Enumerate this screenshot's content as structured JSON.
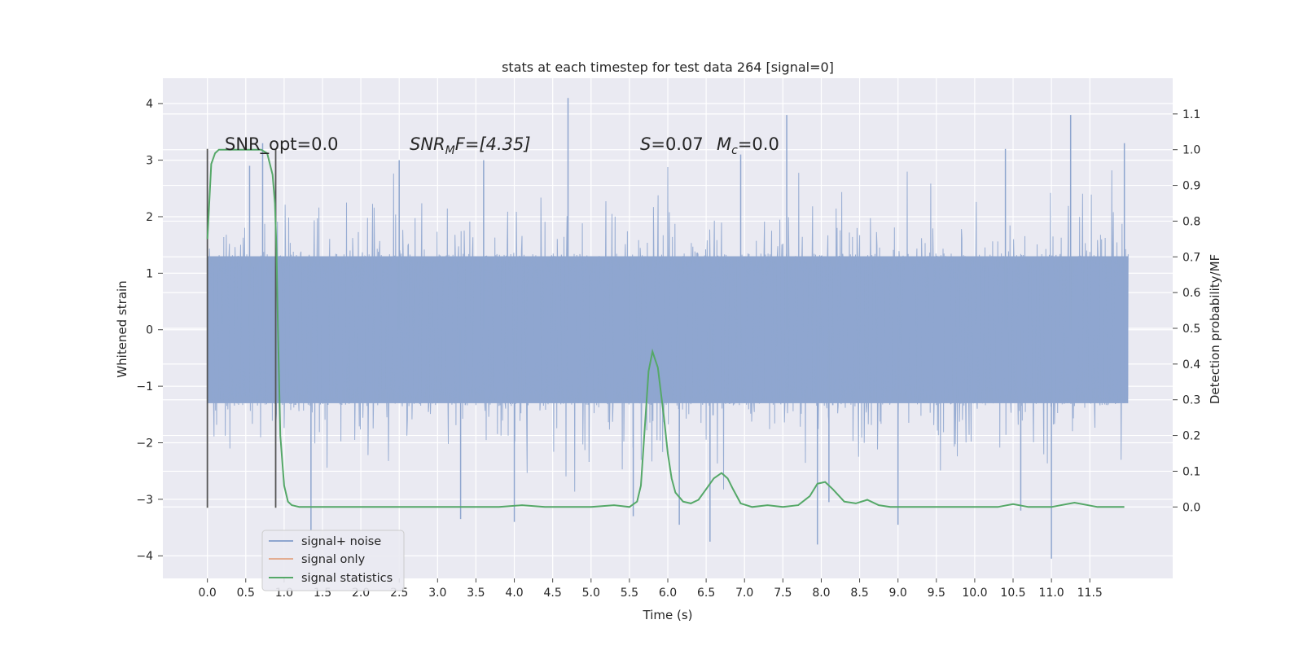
{
  "chart_data": {
    "type": "line",
    "title": "stats at each timestep for test data 264 [signal=0]",
    "xlabel": "Time (s)",
    "ylabel": "Whitened strain",
    "y2label": "Detection probability/MF",
    "xlim": [
      -0.58,
      12.58
    ],
    "ylim": [
      -4.4,
      4.45
    ],
    "y2lim": [
      -0.2,
      1.2
    ],
    "x_ticks": [
      0.0,
      0.5,
      1.0,
      1.5,
      2.0,
      2.5,
      3.0,
      3.5,
      4.0,
      4.5,
      5.0,
      5.5,
      6.0,
      6.5,
      7.0,
      7.5,
      8.0,
      8.5,
      9.0,
      9.5,
      10.0,
      10.5,
      11.0,
      11.5
    ],
    "x_tick_labels": [
      "0.0",
      "0.5",
      "1.0",
      "1.5",
      "2.0",
      "2.5",
      "3.0",
      "3.5",
      "4.0",
      "4.5",
      "5.0",
      "5.5",
      "6.0",
      "6.5",
      "7.0",
      "7.5",
      "8.0",
      "8.5",
      "9.0",
      "9.5",
      "10.0",
      "10.5",
      "11.0",
      "11.5"
    ],
    "y_ticks": [
      -4,
      -3,
      -2,
      -1,
      0,
      1,
      2,
      3,
      4
    ],
    "y_tick_labels": [
      "−4",
      "−3",
      "−2",
      "−1",
      "0",
      "1",
      "2",
      "3",
      "4"
    ],
    "y2_ticks": [
      0.0,
      0.1,
      0.2,
      0.3,
      0.4,
      0.5,
      0.6,
      0.7,
      0.8,
      0.9,
      1.0,
      1.1
    ],
    "y2_tick_labels": [
      "0.0",
      "0.1",
      "0.2",
      "0.3",
      "0.4",
      "0.5",
      "0.6",
      "0.7",
      "0.8",
      "0.9",
      "1.0",
      "1.1"
    ],
    "grid": true,
    "legend_position": "lower-left",
    "annotations": {
      "snr_opt": "SNR_opt=0.0",
      "snr_mf_base": "SNR",
      "snr_mf_sub": "M",
      "snr_mf_rest": "F=[4.35]",
      "s_base": "S",
      "s_rest": "=0.07",
      "mc_base": "M",
      "mc_sub": "c",
      "mc_rest": "=0.0"
    },
    "window_markers": {
      "x": [
        0.0,
        0.89
      ],
      "y_range": [
        -3.15,
        3.2
      ]
    },
    "series": [
      {
        "name": "signal+ noise",
        "axis": "left",
        "style": "dense noise",
        "color": "#8fa6cf",
        "x_range": [
          0.0,
          12.0
        ],
        "typical_envelope": [
          -1.3,
          1.3
        ],
        "spikes": [
          [
            0.72,
            3.3
          ],
          [
            0.55,
            2.9
          ],
          [
            4.7,
            4.1
          ],
          [
            7.55,
            3.8
          ],
          [
            11.25,
            3.8
          ],
          [
            11.95,
            3.3
          ],
          [
            10.4,
            3.2
          ],
          [
            6.95,
            3.1
          ],
          [
            2.5,
            3.0
          ],
          [
            3.6,
            3.0
          ],
          [
            1.35,
            -3.55
          ],
          [
            5.55,
            -3.3
          ],
          [
            8.1,
            -3.05
          ],
          [
            10.6,
            -3.2
          ],
          [
            11.0,
            -4.05
          ],
          [
            6.55,
            -3.75
          ],
          [
            7.95,
            -3.8
          ],
          [
            9.0,
            -3.45
          ],
          [
            4.0,
            -3.4
          ],
          [
            3.3,
            -3.35
          ],
          [
            6.15,
            -3.45
          ]
        ]
      },
      {
        "name": "signal only",
        "axis": "left",
        "color": "#dd8452",
        "x": [],
        "y": []
      },
      {
        "name": "signal statistics",
        "axis": "right",
        "color": "#55a868",
        "x": [
          0.0,
          0.05,
          0.1,
          0.15,
          0.2,
          0.3,
          0.4,
          0.5,
          0.6,
          0.7,
          0.78,
          0.85,
          0.88,
          0.9,
          0.92,
          0.95,
          1.0,
          1.05,
          1.1,
          1.2,
          1.3,
          1.5,
          2.0,
          2.5,
          3.0,
          3.5,
          3.8,
          4.1,
          4.4,
          5.0,
          5.3,
          5.5,
          5.6,
          5.65,
          5.7,
          5.75,
          5.8,
          5.87,
          5.95,
          6.0,
          6.05,
          6.1,
          6.2,
          6.3,
          6.4,
          6.5,
          6.6,
          6.7,
          6.78,
          6.85,
          6.95,
          7.1,
          7.3,
          7.5,
          7.7,
          7.85,
          7.95,
          8.05,
          8.15,
          8.3,
          8.45,
          8.6,
          8.75,
          8.9,
          9.2,
          10.0,
          10.3,
          10.5,
          10.7,
          11.0,
          11.3,
          11.6,
          11.9,
          11.95
        ],
        "y": [
          0.75,
          0.96,
          0.99,
          1.0,
          1.0,
          1.0,
          1.0,
          1.0,
          1.0,
          1.0,
          0.99,
          0.93,
          0.85,
          0.72,
          0.5,
          0.2,
          0.06,
          0.015,
          0.005,
          0.0,
          0.0,
          0.0,
          0.0,
          0.0,
          0.0,
          0.0,
          0.0,
          0.005,
          0.0,
          0.0,
          0.005,
          0.0,
          0.015,
          0.06,
          0.22,
          0.38,
          0.435,
          0.39,
          0.25,
          0.15,
          0.08,
          0.04,
          0.015,
          0.01,
          0.02,
          0.05,
          0.08,
          0.095,
          0.08,
          0.05,
          0.01,
          0.0,
          0.005,
          0.0,
          0.005,
          0.03,
          0.065,
          0.07,
          0.05,
          0.015,
          0.01,
          0.02,
          0.005,
          0.0,
          0.0,
          0.0,
          0.0,
          0.008,
          0.0,
          0.0,
          0.012,
          0.0,
          0.0,
          0.0
        ]
      }
    ]
  }
}
